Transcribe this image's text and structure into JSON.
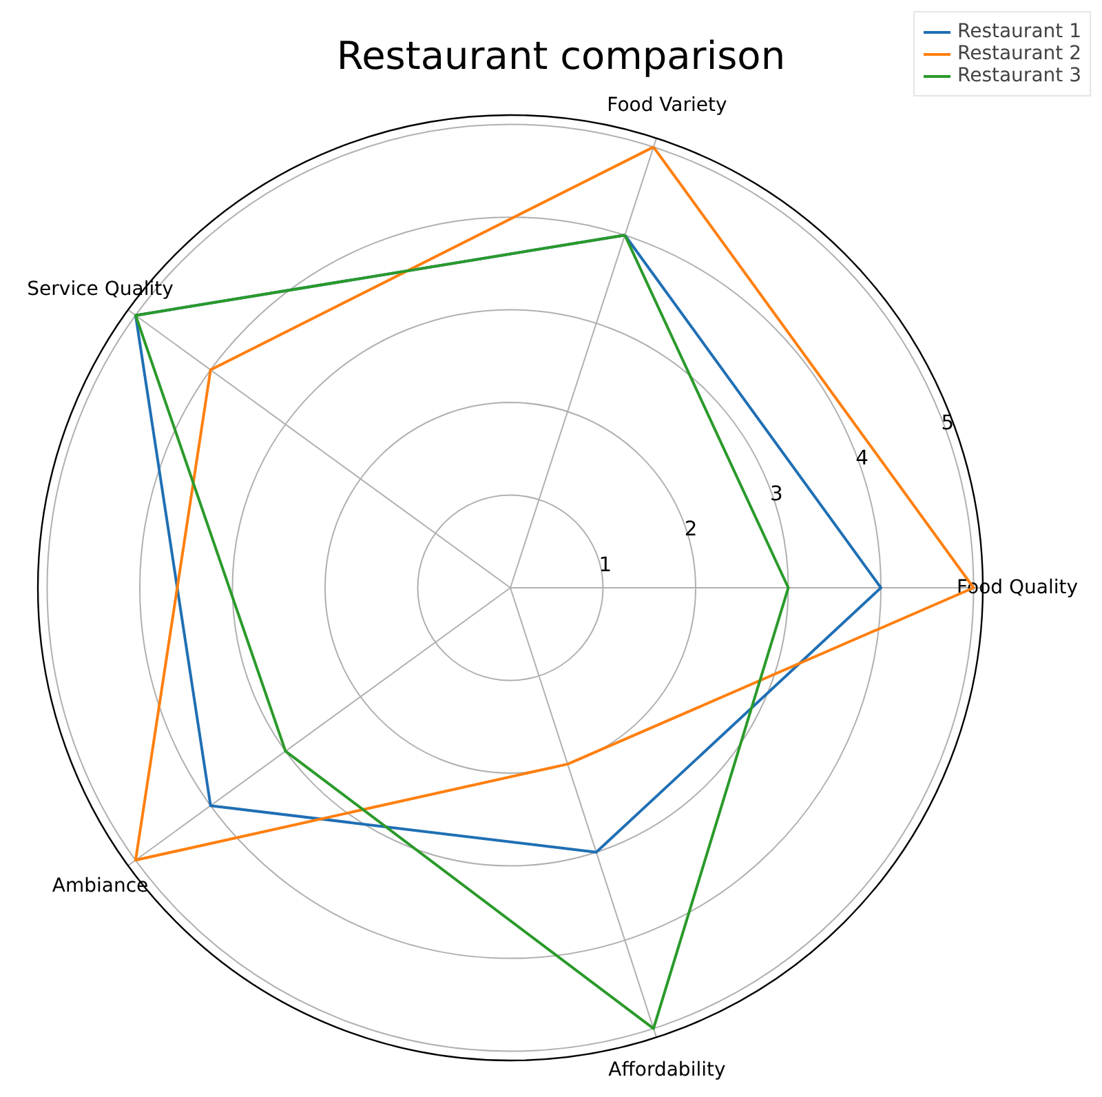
{
  "chart_data": {
    "type": "radar",
    "title": "Restaurant comparison",
    "categories": [
      "Food Variety",
      "Food Quality",
      "Affordability",
      "Ambiance",
      "Service Quality"
    ],
    "series": [
      {
        "name": "Restaurant 1",
        "color": "#1f6fb4",
        "values": [
          4,
          4,
          3,
          4,
          5
        ]
      },
      {
        "name": "Restaurant 2",
        "color": "#ff7f0e",
        "values": [
          5,
          5,
          2,
          5,
          4
        ]
      },
      {
        "name": "Restaurant 3",
        "color": "#2a9a2a",
        "values": [
          4,
          3,
          5,
          3,
          5
        ]
      }
    ],
    "ylim": [
      0,
      5.1
    ],
    "yticks": [
      1,
      2,
      3,
      4,
      5
    ],
    "grid": true,
    "legend": "top right"
  }
}
